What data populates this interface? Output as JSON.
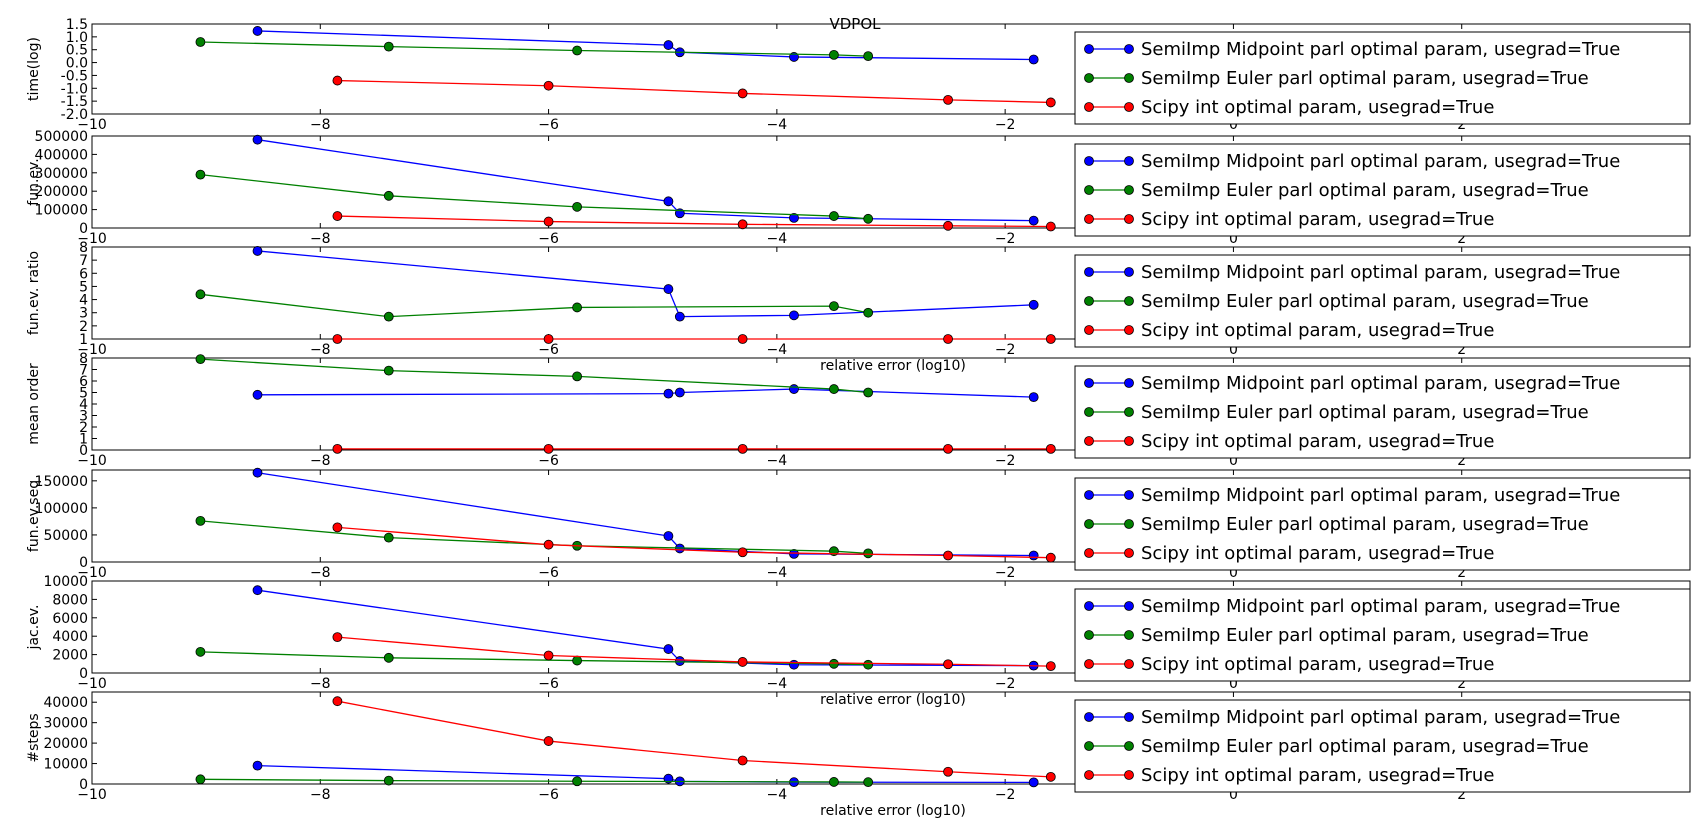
{
  "figure": {
    "title": "VDPOL",
    "colors": {
      "midpoint": "#0000ff",
      "euler": "#008000",
      "scipy": "#ff0000"
    }
  },
  "chart_data": [
    {
      "type": "line",
      "ylabel": "time(log)",
      "xlim": [
        -10,
        4
      ],
      "ylim": [
        -2.0,
        1.5
      ],
      "yticks": [
        "1.5",
        "1.0",
        "0.5",
        "0.0",
        "-0.5",
        "-1.0",
        "-1.5",
        "-2.0"
      ],
      "xticks": [
        "-10",
        "-8",
        "-6",
        "-4",
        "-2",
        "0",
        "2"
      ],
      "xlabel": "",
      "series": [
        {
          "name": "SemiImp Midpoint parl optimal param, usegrad=True",
          "color": "#0000ff",
          "x": [
            -8.55,
            -4.95,
            -4.85,
            -3.85,
            -1.75
          ],
          "y": [
            1.23,
            0.68,
            0.4,
            0.22,
            0.12
          ]
        },
        {
          "name": "SemiImp Euler parl optimal param, usegrad=True",
          "color": "#008000",
          "x": [
            -9.05,
            -7.4,
            -5.75,
            -3.5,
            -3.2
          ],
          "y": [
            0.8,
            0.62,
            0.47,
            0.3,
            0.25
          ]
        },
        {
          "name": "Scipy int optimal param, usegrad=True",
          "color": "#ff0000",
          "x": [
            -7.85,
            -6.0,
            -4.3,
            -2.5,
            -1.6
          ],
          "y": [
            -0.7,
            -0.9,
            -1.2,
            -1.45,
            -1.55
          ]
        }
      ]
    },
    {
      "type": "line",
      "ylabel": "fun.ev.",
      "xlim": [
        -10,
        4
      ],
      "ylim": [
        0,
        500000
      ],
      "yticks": [
        "500000",
        "400000",
        "300000",
        "200000",
        "100000",
        "0"
      ],
      "xticks": [
        "-10",
        "-8",
        "-6",
        "-4",
        "-2",
        "0",
        "2"
      ],
      "xlabel": "",
      "series": [
        {
          "name": "SemiImp Midpoint parl optimal param, usegrad=True",
          "color": "#0000ff",
          "x": [
            -8.55,
            -4.95,
            -4.85,
            -3.85,
            -1.75
          ],
          "y": [
            480000,
            145000,
            80000,
            55000,
            40000
          ]
        },
        {
          "name": "SemiImp Euler parl optimal param, usegrad=True",
          "color": "#008000",
          "x": [
            -9.05,
            -7.4,
            -5.75,
            -3.5,
            -3.2
          ],
          "y": [
            290000,
            175000,
            115000,
            65000,
            50000
          ]
        },
        {
          "name": "Scipy int optimal param, usegrad=True",
          "color": "#ff0000",
          "x": [
            -7.85,
            -6.0,
            -4.3,
            -2.5,
            -1.6
          ],
          "y": [
            65000,
            35000,
            20000,
            12000,
            8000
          ]
        }
      ]
    },
    {
      "type": "line",
      "ylabel": "fun.ev. ratio",
      "xlim": [
        -10,
        4
      ],
      "ylim": [
        1,
        8
      ],
      "yticks": [
        "8",
        "7",
        "6",
        "5",
        "4",
        "3",
        "2",
        "1"
      ],
      "xticks": [
        "-10",
        "-8",
        "-6",
        "-4",
        "-2",
        "0",
        "2"
      ],
      "xlabel": "relative error (log10)",
      "series": [
        {
          "name": "SemiImp Midpoint parl optimal param, usegrad=True",
          "color": "#0000ff",
          "x": [
            -8.55,
            -4.95,
            -4.85,
            -3.85,
            -1.75
          ],
          "y": [
            7.7,
            4.8,
            2.7,
            2.8,
            3.6
          ]
        },
        {
          "name": "SemiImp Euler parl optimal param, usegrad=True",
          "color": "#008000",
          "x": [
            -9.05,
            -7.4,
            -5.75,
            -3.5,
            -3.2
          ],
          "y": [
            4.4,
            2.7,
            3.4,
            3.5,
            3.0
          ]
        },
        {
          "name": "Scipy int optimal param, usegrad=True",
          "color": "#ff0000",
          "x": [
            -7.85,
            -6.0,
            -4.3,
            -2.5,
            -1.6
          ],
          "y": [
            1.0,
            1.0,
            1.0,
            1.0,
            1.0
          ]
        }
      ]
    },
    {
      "type": "line",
      "ylabel": "mean order",
      "xlim": [
        -10,
        4
      ],
      "ylim": [
        0,
        8
      ],
      "yticks": [
        "8",
        "7",
        "6",
        "5",
        "4",
        "3",
        "2",
        "1",
        "0"
      ],
      "xticks": [
        "-10",
        "-8",
        "-6",
        "-4",
        "-2",
        "0",
        "2"
      ],
      "xlabel": "",
      "series": [
        {
          "name": "SemiImp Midpoint parl optimal param, usegrad=True",
          "color": "#0000ff",
          "x": [
            -8.55,
            -4.95,
            -4.85,
            -3.85,
            -1.75
          ],
          "y": [
            4.8,
            4.9,
            5.0,
            5.3,
            4.6
          ]
        },
        {
          "name": "SemiImp Euler parl optimal param, usegrad=True",
          "color": "#008000",
          "x": [
            -9.05,
            -7.4,
            -5.75,
            -3.5,
            -3.2
          ],
          "y": [
            7.9,
            6.9,
            6.4,
            5.3,
            5.0
          ]
        },
        {
          "name": "Scipy int optimal param, usegrad=True",
          "color": "#ff0000",
          "x": [
            -7.85,
            -6.0,
            -4.3,
            -2.5,
            -1.6
          ],
          "y": [
            0.1,
            0.1,
            0.1,
            0.1,
            0.1
          ]
        }
      ]
    },
    {
      "type": "line",
      "ylabel": "fun.ev.seq",
      "xlim": [
        -10,
        4
      ],
      "ylim": [
        0,
        170000
      ],
      "yticks": [
        "150000",
        "100000",
        "50000",
        "0"
      ],
      "xticks": [
        "-10",
        "-8",
        "-6",
        "-4",
        "-2",
        "0",
        "2"
      ],
      "xlabel": "",
      "series": [
        {
          "name": "SemiImp Midpoint parl optimal param, usegrad=True",
          "color": "#0000ff",
          "x": [
            -8.55,
            -4.95,
            -4.85,
            -3.85,
            -1.75
          ],
          "y": [
            165000,
            48000,
            25000,
            15000,
            12000
          ]
        },
        {
          "name": "SemiImp Euler parl optimal param, usegrad=True",
          "color": "#008000",
          "x": [
            -9.05,
            -7.4,
            -5.75,
            -3.5,
            -3.2
          ],
          "y": [
            76000,
            45000,
            30000,
            20000,
            16000
          ]
        },
        {
          "name": "Scipy int optimal param, usegrad=True",
          "color": "#ff0000",
          "x": [
            -7.85,
            -6.0,
            -4.3,
            -2.5,
            -1.6
          ],
          "y": [
            64000,
            32000,
            18000,
            12000,
            8000
          ]
        }
      ]
    },
    {
      "type": "line",
      "ylabel": "jac.ev.",
      "xlim": [
        -10,
        4
      ],
      "ylim": [
        0,
        10000
      ],
      "yticks": [
        "10000",
        "8000",
        "6000",
        "4000",
        "2000",
        "0"
      ],
      "xticks": [
        "-10",
        "-8",
        "-6",
        "-4",
        "-2",
        "0",
        "2"
      ],
      "xlabel": "relative error (log10)",
      "series": [
        {
          "name": "SemiImp Midpoint parl optimal param, usegrad=True",
          "color": "#0000ff",
          "x": [
            -8.55,
            -4.95,
            -4.85,
            -3.85,
            -1.75
          ],
          "y": [
            9000,
            2600,
            1300,
            900,
            800
          ]
        },
        {
          "name": "SemiImp Euler parl optimal param, usegrad=True",
          "color": "#008000",
          "x": [
            -9.05,
            -7.4,
            -5.75,
            -3.5,
            -3.2
          ],
          "y": [
            2300,
            1650,
            1350,
            1000,
            900
          ]
        },
        {
          "name": "Scipy int optimal param, usegrad=True",
          "color": "#ff0000",
          "x": [
            -7.85,
            -6.0,
            -4.3,
            -2.5,
            -1.6
          ],
          "y": [
            3900,
            1900,
            1200,
            950,
            750
          ]
        }
      ]
    },
    {
      "type": "line",
      "ylabel": "#steps",
      "xlim": [
        -10,
        4
      ],
      "ylim": [
        0,
        45000
      ],
      "yticks": [
        "40000",
        "30000",
        "20000",
        "10000",
        "0"
      ],
      "xticks": [
        "-10",
        "-8",
        "-6",
        "-4",
        "-2",
        "0",
        "2"
      ],
      "xlabel": "relative error (log10)",
      "series": [
        {
          "name": "SemiImp Midpoint parl optimal param, usegrad=True",
          "color": "#0000ff",
          "x": [
            -8.55,
            -4.95,
            -4.85,
            -3.85,
            -1.75
          ],
          "y": [
            9000,
            2600,
            1300,
            900,
            800
          ]
        },
        {
          "name": "SemiImp Euler parl optimal param, usegrad=True",
          "color": "#008000",
          "x": [
            -9.05,
            -7.4,
            -5.75,
            -3.5,
            -3.2
          ],
          "y": [
            2300,
            1650,
            1350,
            1000,
            900
          ]
        },
        {
          "name": "Scipy int optimal param, usegrad=True",
          "color": "#ff0000",
          "x": [
            -7.85,
            -6.0,
            -4.3,
            -2.5,
            -1.6
          ],
          "y": [
            40500,
            21000,
            11500,
            6000,
            3500
          ]
        }
      ]
    }
  ]
}
